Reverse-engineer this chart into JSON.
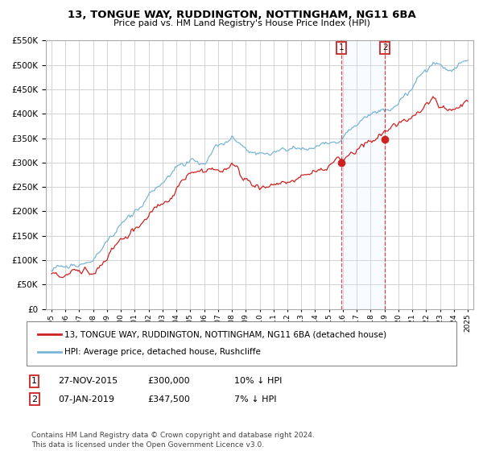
{
  "title": "13, TONGUE WAY, RUDDINGTON, NOTTINGHAM, NG11 6BA",
  "subtitle": "Price paid vs. HM Land Registry's House Price Index (HPI)",
  "legend_line1": "13, TONGUE WAY, RUDDINGTON, NOTTINGHAM, NG11 6BA (detached house)",
  "legend_line2": "HPI: Average price, detached house, Rushcliffe",
  "sale1_date": "27-NOV-2015",
  "sale1_price": "£300,000",
  "sale1_hpi": "10% ↓ HPI",
  "sale2_date": "07-JAN-2019",
  "sale2_price": "£347,500",
  "sale2_hpi": "7% ↓ HPI",
  "copyright": "Contains HM Land Registry data © Crown copyright and database right 2024.\nThis data is licensed under the Open Government Licence v3.0.",
  "sale1_year": 2015.9,
  "sale1_value": 300000,
  "sale2_year": 2019.03,
  "sale2_value": 347500,
  "ylim": [
    0,
    550000
  ],
  "xlim_start": 1994.6,
  "xlim_end": 2025.4,
  "hpi_color": "#7ab5d8",
  "property_color": "#cc2222",
  "sale_marker_color": "#cc2222",
  "grid_color": "#cccccc",
  "background_color": "#ffffff",
  "shade_color": "#ddeeff"
}
